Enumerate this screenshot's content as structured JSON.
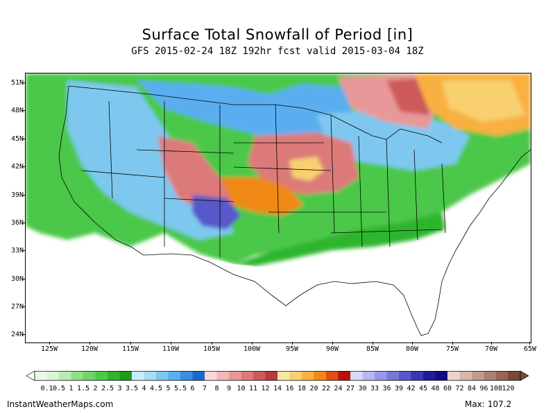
{
  "title": "Surface Total Snowfall of Period [in]",
  "subtitle": "GFS 2015-02-24 18Z 192hr fcst valid 2015-03-04 18Z",
  "lat_labels": [
    "51N",
    "48N",
    "45N",
    "42N",
    "39N",
    "36N",
    "33N",
    "30N",
    "27N",
    "24N"
  ],
  "lon_labels": [
    "125W",
    "120W",
    "115W",
    "110W",
    "105W",
    "100W",
    "95W",
    "90W",
    "85W",
    "80W",
    "75W",
    "70W",
    "65W"
  ],
  "colorbar": {
    "labels": [
      "0.1",
      "0.5",
      "1",
      "1.5",
      "2",
      "2.5",
      "3",
      "3.5",
      "4",
      "4.5",
      "5",
      "5.5",
      "6",
      "7",
      "8",
      "9",
      "10",
      "11",
      "12",
      "14",
      "16",
      "18",
      "20",
      "22",
      "24",
      "27",
      "30",
      "33",
      "36",
      "39",
      "42",
      "45",
      "48",
      "60",
      "72",
      "84",
      "96",
      "108",
      "120"
    ],
    "colors": [
      "#d9f5d9",
      "#b4ecb2",
      "#8fe08a",
      "#6ed56a",
      "#4cc84a",
      "#2fb52f",
      "#1a9d1a",
      "#c8ecf8",
      "#a4dcf4",
      "#7ec8f0",
      "#5aaef0",
      "#3c8ee0",
      "#2068c8",
      "#f8d8d8",
      "#f0b8b8",
      "#e89898",
      "#dc7a7a",
      "#cc5a5a",
      "#b83a3a",
      "#f8e8a0",
      "#f8d070",
      "#f8b040",
      "#f08818",
      "#e05010",
      "#b81010",
      "#d8d8f8",
      "#b8b8f0",
      "#9898e8",
      "#7878d8",
      "#5858c8",
      "#3838b0",
      "#201c98",
      "#140c80",
      "#e8d4cc",
      "#d8b8ac",
      "#c49c8c",
      "#ae8070",
      "#986454",
      "#7a4838"
    ]
  },
  "footer": {
    "site": "InstantWeatherMaps.com",
    "max_label": "Max:",
    "max_value": "107.2"
  }
}
